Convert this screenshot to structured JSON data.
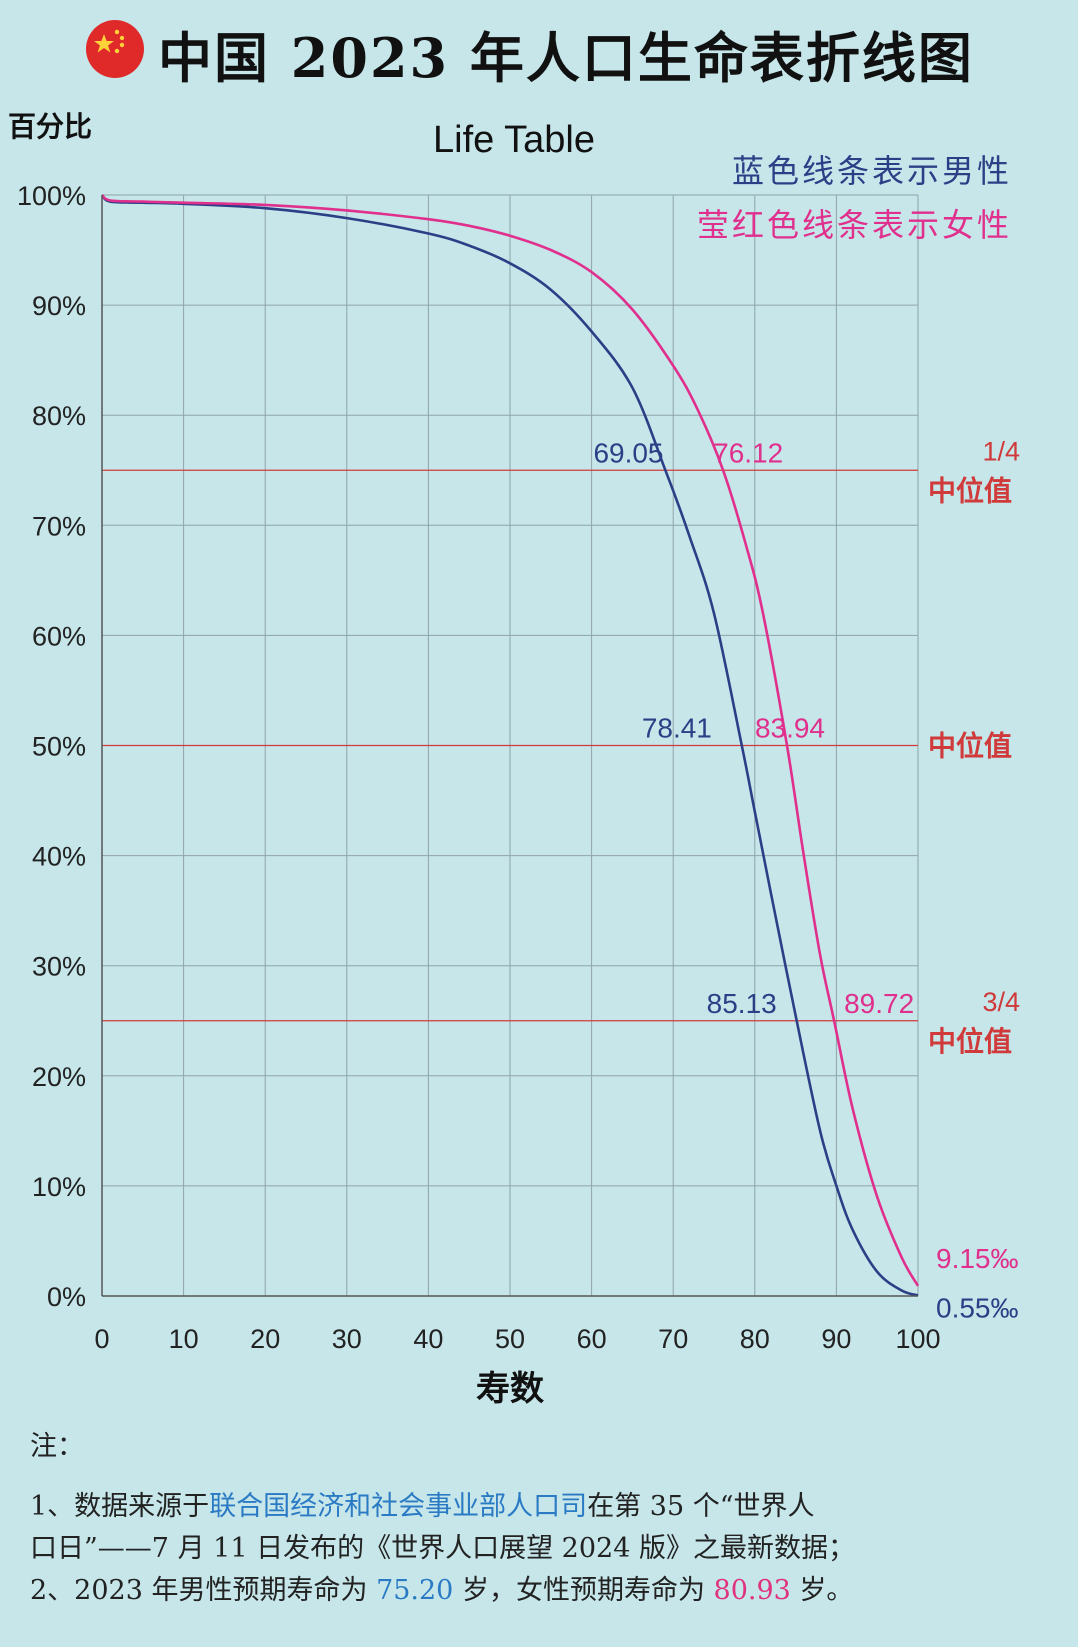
{
  "header": {
    "title": "中国 2023 年人口生命表折线图",
    "flag_icon": "china-flag-icon"
  },
  "colors": {
    "background": "#c6e6ea",
    "male": "#2c3f86",
    "female": "#e02f8c",
    "reference": "#d03a3a",
    "grid": "#8fa4a8",
    "source_highlight": "#2b7bc4"
  },
  "chart_data": {
    "type": "line",
    "title": "Life Table",
    "ylabel": "百分比",
    "xlabel": "寿数",
    "xlim": [
      0,
      100
    ],
    "ylim": [
      0,
      100
    ],
    "x_ticks": [
      "0",
      "10",
      "20",
      "30",
      "40",
      "50",
      "60",
      "70",
      "80",
      "90",
      "100"
    ],
    "y_ticks": [
      "0%",
      "10%",
      "20%",
      "30%",
      "40%",
      "50%",
      "60%",
      "70%",
      "80%",
      "90%",
      "100%"
    ],
    "grid": true,
    "legend": [
      {
        "text": "蓝色线条表示男性",
        "color": "#2c3f86"
      },
      {
        "text": "莹红色线条表示女性",
        "color": "#e02f8c"
      }
    ],
    "series": [
      {
        "color": "#2c3f86",
        "x": [
          0,
          1,
          5,
          10,
          20,
          30,
          40,
          45,
          50,
          55,
          60,
          65,
          69.05,
          72,
          75,
          78.41,
          80,
          82,
          85.13,
          88,
          90,
          92,
          95,
          98,
          100
        ],
        "y": [
          100,
          99.4,
          99.3,
          99.2,
          98.8,
          97.9,
          96.5,
          95.4,
          93.8,
          91.4,
          87.6,
          82.5,
          75,
          69,
          62,
          50,
          44,
          36.5,
          25,
          15,
          10,
          6,
          2.2,
          0.5,
          0.055
        ]
      },
      {
        "color": "#e02f8c",
        "x": [
          0,
          1,
          5,
          10,
          20,
          30,
          40,
          45,
          50,
          55,
          60,
          65,
          70,
          73,
          76.12,
          79,
          81,
          83.94,
          86,
          88,
          89.72,
          92,
          95,
          98,
          100
        ],
        "y": [
          100,
          99.5,
          99.4,
          99.3,
          99.1,
          98.6,
          97.8,
          97.2,
          96.3,
          95,
          93,
          89.6,
          84.5,
          80.5,
          75,
          68,
          62,
          50,
          40,
          31,
          25,
          17,
          9,
          3.5,
          0.915
        ]
      }
    ],
    "reference_lines": [
      {
        "y": 75,
        "label_top": "1/4",
        "label": "中位值"
      },
      {
        "y": 50,
        "label_top": "",
        "label": "中位值"
      },
      {
        "y": 25,
        "label_top": "3/4",
        "label": "中位值"
      }
    ],
    "annotations": [
      {
        "text": "69.05",
        "series": "male",
        "x": 69.05,
        "y": 75
      },
      {
        "text": "76.12",
        "series": "female",
        "x": 76.12,
        "y": 75
      },
      {
        "text": "78.41",
        "series": "male",
        "x": 78.41,
        "y": 50
      },
      {
        "text": "83.94",
        "series": "female",
        "x": 83.94,
        "y": 50
      },
      {
        "text": "85.13",
        "series": "male",
        "x": 85.13,
        "y": 25
      },
      {
        "text": "89.72",
        "series": "female",
        "x": 89.72,
        "y": 25
      },
      {
        "text": "9.15‰",
        "series": "female",
        "x": 100,
        "y": 0.915
      },
      {
        "text": "0.55‰",
        "series": "male",
        "x": 100,
        "y": 0.055
      }
    ]
  },
  "notes": {
    "heading": "注：",
    "line1_a": "1、数据来源于",
    "line1_source": "联合国经济和社会事业部人口司",
    "line1_b": "在第 35 个“世界人",
    "line2": "口日”——7 月 11 日发布的《世界人口展望 2024 版》之最新数据；",
    "line3_a": "2、2023 年男性预期寿命为 ",
    "line3_male": "75.20",
    "line3_b": " 岁，女性预期寿命为 ",
    "line3_female": "80.93",
    "line3_c": " 岁。"
  }
}
